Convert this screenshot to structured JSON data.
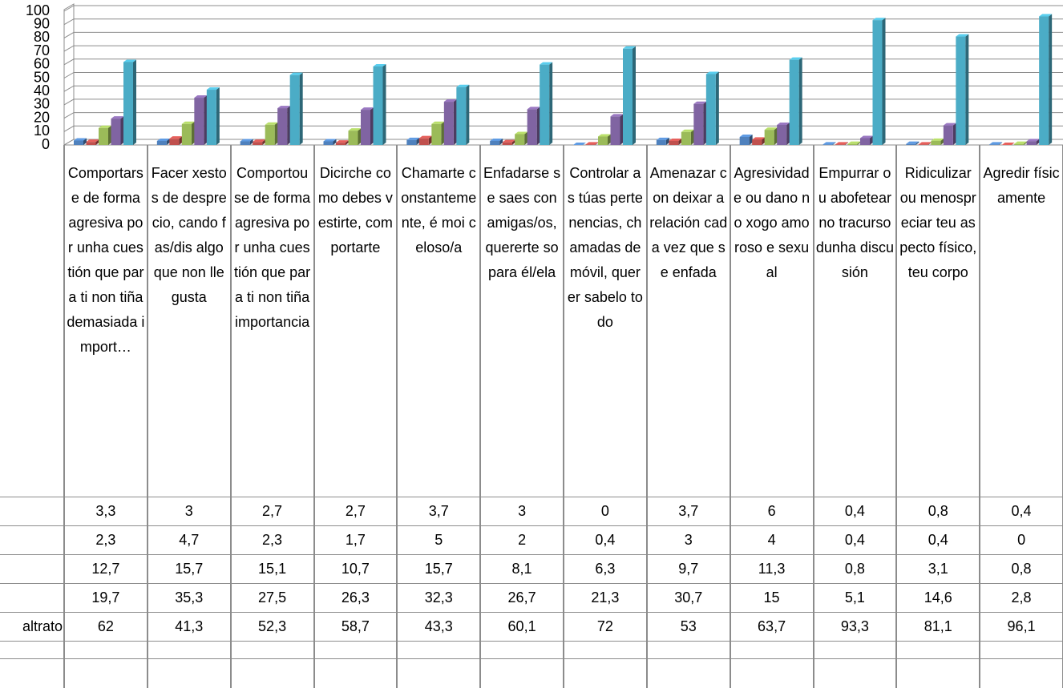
{
  "chart_data": {
    "type": "bar3d",
    "categories": [
      "Comportarse de forma agresiva por unha cuestión que para ti non tiña demasiada import…",
      "Facer xestos de desprecio, cando fas/dis algo que non lle gusta",
      "Comportouse de forma agresiva por unha cuestión que para ti non tiña importancia",
      "Dicirche como debes vestirte, comportarte",
      "Chamarte constantemente, é moi celoso/a",
      "Enfadarse se saes con amigas/os, quererte so para él/ela",
      "Controlar as túas pertenencias, chamadas de móvil, querer sabelo todo",
      "Amenazar con deixar a relación cada vez que se enfada",
      "Agresividade ou dano no xogo amoroso e sexual",
      "Empurrar ou abofetear no tracurso dunha discusión",
      "Ridiculizar ou menospreciar teu aspecto físico, teu corpo",
      "Agredir físicamente"
    ],
    "series": [
      {
        "color": "#4f81bd",
        "values": [
          3.3,
          3,
          2.7,
          2.7,
          3.7,
          3,
          0,
          3.7,
          6,
          0.4,
          0.8,
          0.4
        ],
        "value_labels": [
          "3,3",
          "3",
          "2,7",
          "2,7",
          "3,7",
          "3",
          "0",
          "3,7",
          "6",
          "0,4",
          "0,8",
          "0,4"
        ]
      },
      {
        "color": "#c0504d",
        "values": [
          2.3,
          4.7,
          2.3,
          1.7,
          5,
          2,
          0.4,
          3,
          4,
          0.4,
          0.4,
          0
        ],
        "value_labels": [
          "2,3",
          "4,7",
          "2,3",
          "1,7",
          "5",
          "2",
          "0,4",
          "3",
          "4",
          "0,4",
          "0,4",
          "0"
        ]
      },
      {
        "color": "#9bbb59",
        "values": [
          12.7,
          15.7,
          15.1,
          10.7,
          15.7,
          8.1,
          6.3,
          9.7,
          11.3,
          0.8,
          3.1,
          0.8
        ],
        "value_labels": [
          "12,7",
          "15,7",
          "15,1",
          "10,7",
          "15,7",
          "8,1",
          "6,3",
          "9,7",
          "11,3",
          "0,8",
          "3,1",
          "0,8"
        ]
      },
      {
        "color": "#8064a2",
        "values": [
          19.7,
          35.3,
          27.5,
          26.3,
          32.3,
          26.7,
          21.3,
          30.7,
          15,
          5.1,
          14.6,
          2.8
        ],
        "value_labels": [
          "19,7",
          "35,3",
          "27,5",
          "26,3",
          "32,3",
          "26,7",
          "21,3",
          "30,7",
          "15",
          "5,1",
          "14,6",
          "2,8"
        ]
      },
      {
        "name": "altrato",
        "color": "#4bacc6",
        "values": [
          62,
          41.3,
          52.3,
          58.7,
          43.3,
          60.1,
          72,
          53,
          63.7,
          93.3,
          81.1,
          96.1
        ],
        "value_labels": [
          "62",
          "41,3",
          "52,3",
          "58,7",
          "43,3",
          "60,1",
          "72",
          "53",
          "63,7",
          "93,3",
          "81,1",
          "96,1"
        ]
      }
    ],
    "ylim": [
      0,
      100
    ],
    "yticks": [
      0,
      10,
      20,
      30,
      40,
      50,
      60,
      70,
      80,
      90,
      100
    ],
    "grid": true
  }
}
